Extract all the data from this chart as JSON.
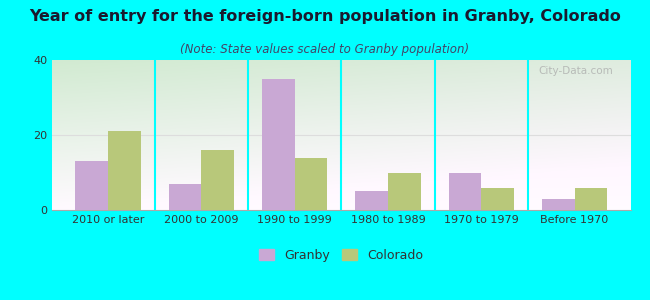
{
  "title": "Year of entry for the foreign-born population in Granby, Colorado",
  "subtitle": "(Note: State values scaled to Granby population)",
  "categories": [
    "2010 or later",
    "2000 to 2009",
    "1990 to 1999",
    "1980 to 1989",
    "1970 to 1979",
    "Before 1970"
  ],
  "granby_values": [
    13,
    7,
    35,
    5,
    10,
    3
  ],
  "colorado_values": [
    21,
    16,
    14,
    10,
    6,
    6
  ],
  "granby_color": "#c9a8d4",
  "colorado_color": "#b8c87a",
  "background_color": "#00ffff",
  "ylim": [
    0,
    40
  ],
  "yticks": [
    0,
    20,
    40
  ],
  "bar_width": 0.35,
  "title_fontsize": 11.5,
  "subtitle_fontsize": 8.5,
  "tick_fontsize": 8,
  "legend_fontsize": 9,
  "title_color": "#1a1a2e",
  "subtitle_color": "#444466",
  "watermark_text": "City-Data.com"
}
